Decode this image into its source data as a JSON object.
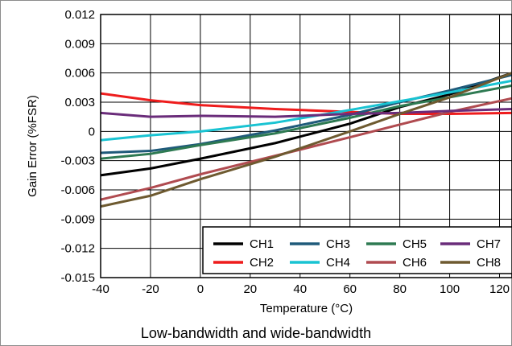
{
  "chart_data": {
    "type": "line",
    "title": "",
    "caption": "Low-bandwidth and wide-bandwidth",
    "xlabel": "Temperature (°C)",
    "ylabel": "Gain Error (%FSR)",
    "xlim": [
      -40,
      125
    ],
    "ylim": [
      -0.015,
      0.012
    ],
    "x_ticks": [
      -40,
      -20,
      0,
      20,
      40,
      60,
      80,
      100,
      120
    ],
    "x_tick_labels": [
      "-40",
      "-20",
      "0",
      "20",
      "40",
      "60",
      "80",
      "100",
      "120"
    ],
    "y_ticks": [
      -0.015,
      -0.012,
      -0.009,
      -0.006,
      -0.003,
      0,
      0.003,
      0.006,
      0.009,
      0.012
    ],
    "y_tick_labels": [
      "-0.015",
      "-0.012",
      "-0.009",
      "-0.006",
      "-0.003",
      "0",
      "0.003",
      "0.006",
      "0.009",
      "0.012"
    ],
    "grid": true,
    "legend_position": "bottom-right",
    "series": [
      {
        "name": "CH1",
        "color": "#000000",
        "x": [
          -40,
          -20,
          0,
          30,
          60,
          80,
          100,
          125
        ],
        "y": [
          -0.0045,
          -0.0038,
          -0.0028,
          -0.0012,
          0.0008,
          0.0025,
          0.0038,
          0.006
        ]
      },
      {
        "name": "CH2",
        "color": "#ee1c1c",
        "x": [
          -40,
          -20,
          0,
          30,
          60,
          80,
          100,
          125
        ],
        "y": [
          0.0039,
          0.0032,
          0.0027,
          0.0023,
          0.002,
          0.0018,
          0.0018,
          0.0019
        ]
      },
      {
        "name": "CH3",
        "color": "#1f5a7a",
        "x": [
          -40,
          -20,
          0,
          30,
          60,
          80,
          100,
          125
        ],
        "y": [
          -0.0022,
          -0.002,
          -0.0013,
          0.0001,
          0.0017,
          0.003,
          0.0042,
          0.0058
        ]
      },
      {
        "name": "CH4",
        "color": "#19c3d2",
        "x": [
          -40,
          -20,
          0,
          30,
          60,
          80,
          100,
          125
        ],
        "y": [
          -0.0009,
          -0.0004,
          0.0,
          0.0009,
          0.0022,
          0.0031,
          0.004,
          0.0052
        ]
      },
      {
        "name": "CH5",
        "color": "#2e7a52",
        "x": [
          -40,
          -20,
          0,
          30,
          60,
          80,
          100,
          125
        ],
        "y": [
          -0.0028,
          -0.0023,
          -0.0014,
          -0.0002,
          0.0014,
          0.0026,
          0.0035,
          0.0047
        ]
      },
      {
        "name": "CH6",
        "color": "#b04b50",
        "x": [
          -40,
          -20,
          0,
          30,
          60,
          80,
          100,
          125
        ],
        "y": [
          -0.007,
          -0.0058,
          -0.0044,
          -0.0025,
          -0.0006,
          0.0007,
          0.002,
          0.0034
        ]
      },
      {
        "name": "CH7",
        "color": "#6a2c7a",
        "x": [
          -40,
          -20,
          0,
          30,
          60,
          80,
          100,
          125
        ],
        "y": [
          0.0019,
          0.0015,
          0.0016,
          0.0015,
          0.0018,
          0.0019,
          0.0021,
          0.0023
        ]
      },
      {
        "name": "CH8",
        "color": "#6e5a30",
        "x": [
          -40,
          -20,
          0,
          30,
          60,
          80,
          100,
          125
        ],
        "y": [
          -0.0077,
          -0.0066,
          -0.0049,
          -0.0026,
          0.0,
          0.0018,
          0.0035,
          0.006
        ]
      }
    ]
  }
}
